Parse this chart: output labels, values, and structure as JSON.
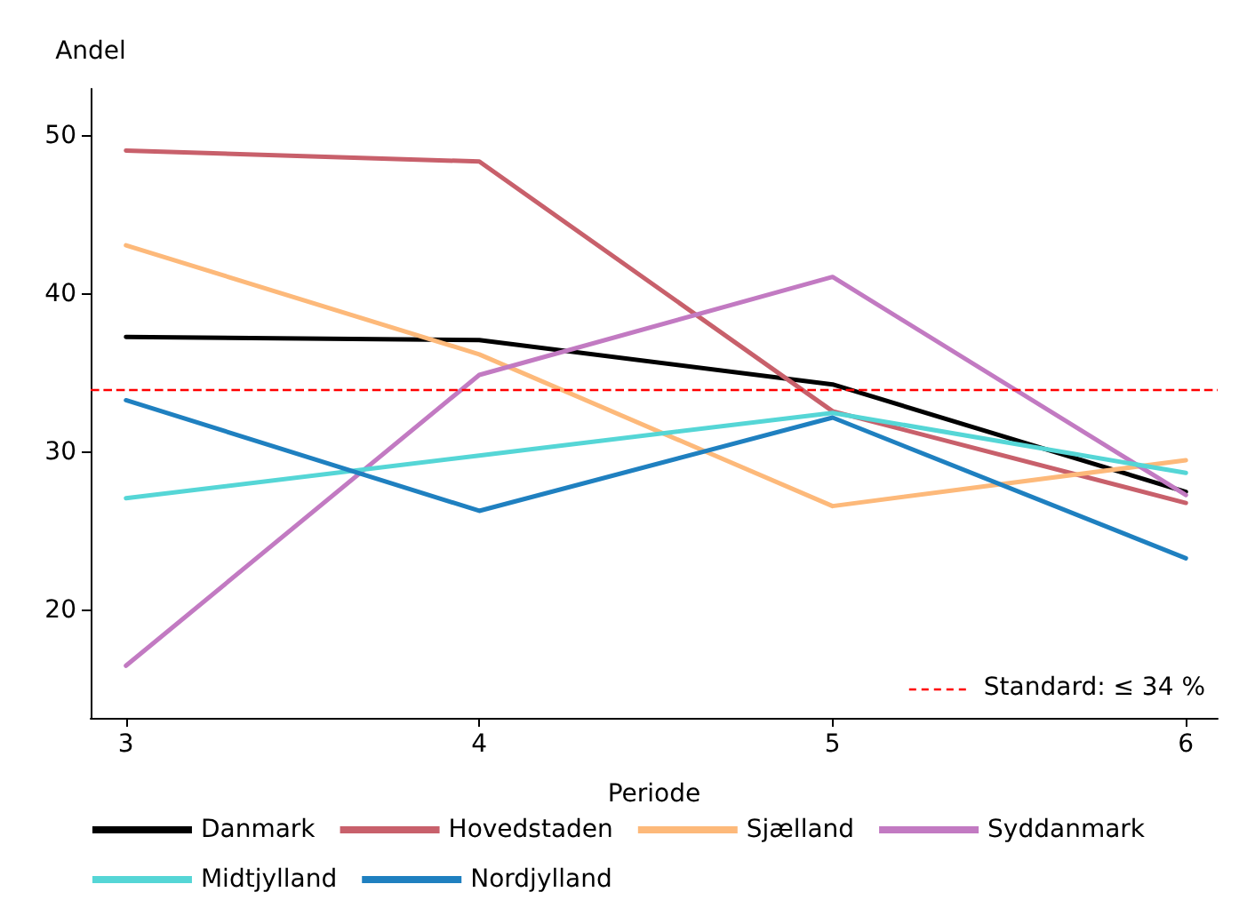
{
  "chart_data": {
    "type": "line",
    "xlabel": "Periode",
    "ylabel": "Andel",
    "x": [
      3,
      4,
      5,
      6
    ],
    "xlim": [
      2.9,
      6.09
    ],
    "xticks": [
      3,
      4,
      5,
      6
    ],
    "ylim": [
      13.2,
      53
    ],
    "yticks": [
      20,
      30,
      40,
      50
    ],
    "grid": false,
    "legend": "bottom",
    "marker": "none",
    "line_style": "solid",
    "series": [
      {
        "name": "Danmark",
        "color": "#000000",
        "values": [
          37.3,
          37.1,
          34.3,
          27.5
        ]
      },
      {
        "name": "Hovedstaden",
        "color": "#c8606b",
        "values": [
          49.1,
          48.4,
          32.6,
          26.8
        ]
      },
      {
        "name": "Sjælland",
        "color": "#fdb97a",
        "values": [
          43.1,
          36.2,
          26.6,
          29.5
        ]
      },
      {
        "name": "Syddanmark",
        "color": "#c27ac2",
        "values": [
          16.5,
          34.9,
          41.1,
          27.3
        ]
      },
      {
        "name": "Midtjylland",
        "color": "#55d6d6",
        "values": [
          27.1,
          29.8,
          32.5,
          28.7
        ]
      },
      {
        "name": "Nordjylland",
        "color": "#1f80c0",
        "values": [
          33.3,
          26.3,
          32.2,
          23.3
        ]
      }
    ],
    "ref_lines": [
      {
        "axis": "y",
        "value": 34,
        "label": "Standard: ≤ 34 %",
        "color": "#ff0000",
        "line_style": "dashed"
      }
    ]
  }
}
